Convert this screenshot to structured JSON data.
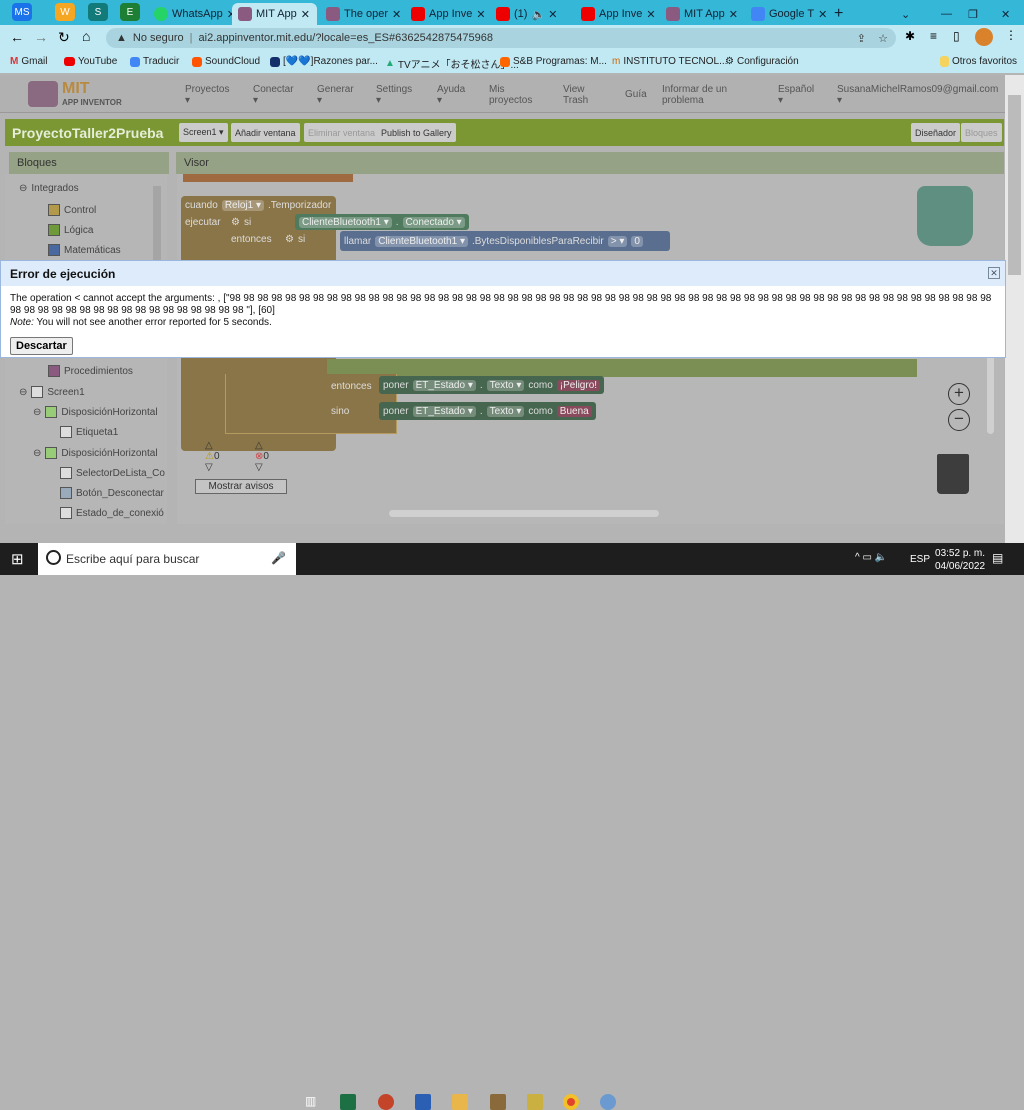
{
  "browser": {
    "tab_groups": [
      "MS",
      "W",
      "S",
      "E"
    ],
    "tabs": [
      "WhatsApp",
      "MIT App",
      "The oper",
      "App Inve",
      "(1)",
      "App Inve",
      "MIT App",
      "Google T"
    ],
    "new_tab": "+",
    "security": "No seguro",
    "url": "ai2.appinventor.mit.edu/?locale=es_ES#6362542875475968",
    "bookmarks": [
      "Gmail",
      "YouTube",
      "Traducir",
      "SoundCloud",
      "[💙💙]Razones par...",
      "TVアニメ「おそ松さん」...",
      "S&B Programas: M...",
      "INSTITUTO TECNOL...",
      "Configuración"
    ],
    "other_bookmarks": "Otros favoritos"
  },
  "app": {
    "logo_mit": "MIT",
    "logo_sub": "APP INVENTOR",
    "menu": [
      "Proyectos",
      "Conectar",
      "Generar",
      "Settings",
      "Ayuda",
      "Mis proyectos",
      "View Trash",
      "Guía",
      "Informar de un problema",
      "Español",
      "SusanaMichelRamos09@gmail.com"
    ],
    "project": "ProyectoTaller2Prueba",
    "toolbar": {
      "screen": "Screen1 ▾",
      "add": "Añadir ventana",
      "remove": "Eliminar ventana",
      "publish": "Publish to Gallery",
      "designer": "Diseñador",
      "blocks": "Bloques"
    },
    "blocks_panel": "Bloques",
    "viewer_panel": "Visor",
    "tree": [
      "Integrados",
      "Control",
      "Lógica",
      "Matemáticas",
      "Procedimientos",
      "Screen1",
      "DisposiciónHorizontal",
      "Etiqueta1",
      "DisposiciónHorizontal",
      "SelectorDeLista_Co",
      "Botón_Desconectar",
      "Estado_de_conexió"
    ],
    "tree_colors": [
      "#b39a4a",
      "#6e9a3a",
      "#4a68a0",
      "#8a5a80"
    ],
    "blocks": {
      "when": "cuando",
      "clock": "Reloj1 ▾",
      "timer": ".Temporizador",
      "do": "ejecutar",
      "if": "si",
      "then": "entonces",
      "else": "sino",
      "bt": "ClienteBluetooth1 ▾",
      "connected": "Conectado ▾",
      "call": "llamar",
      "bytes": ".BytesDisponiblesParaRecibir",
      "gt": "> ▾",
      "zero": "0",
      "set": "poner",
      "label": "ET_Estado ▾",
      "text": "Texto ▾",
      "as": "como",
      "danger": "¡Peligro!",
      "good": "Buena"
    },
    "warnings": "0",
    "errors": "0",
    "show_warnings": "Mostrar avisos"
  },
  "dialog": {
    "title": "Error de ejecución",
    "message_prefix": "The operation < cannot accept the arguments: , [\"",
    "repeat_token": "98",
    "repeat_count": 72,
    "message_suffix": " \"], [60]",
    "note_label": "Note:",
    "note": " You will not see another error reported for 5 seconds.",
    "dismiss": "Descartar"
  },
  "taskbar": {
    "search": "Escribe aquí para buscar",
    "lang": "ESP",
    "time": "03:52 p. m.",
    "date": "04/06/2022"
  }
}
